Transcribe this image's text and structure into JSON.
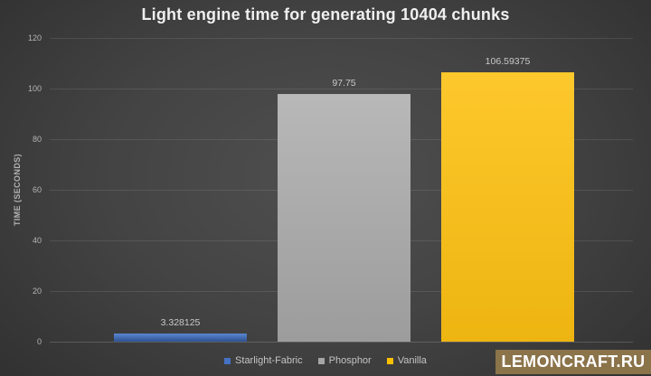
{
  "chart_data": {
    "type": "bar",
    "title": "Light engine time for generating 10404 chunks",
    "categories": [
      "Starlight-Fabric",
      "Phosphor",
      "Vanilla"
    ],
    "values": [
      3.328125,
      97.75,
      106.59375
    ],
    "data_labels": [
      "3.328125",
      "97.75",
      "106.59375"
    ],
    "series_colors": [
      "#4472c4",
      "#a6a6a6",
      "#ffc000"
    ],
    "bar_gradients": [
      [
        "#5b86d0",
        "#2e5291"
      ],
      [
        "#b8b8b8",
        "#9c9c9c"
      ],
      [
        "#fdc82c",
        "#eeb511"
      ]
    ],
    "xlabel": "",
    "ylabel": "TIME (SECONDS)",
    "ylim": [
      0,
      120
    ],
    "yticks": [
      0,
      20,
      40,
      60,
      80,
      100,
      120
    ],
    "grid": true,
    "legend": [
      "Starlight-Fabric",
      "Phosphor",
      "Vanilla"
    ],
    "legend_position": "bottom-center"
  },
  "watermark": {
    "label": "LEMONCRAFT.RU",
    "bg_color": "#8b734a",
    "text_color": "#ffffff"
  }
}
